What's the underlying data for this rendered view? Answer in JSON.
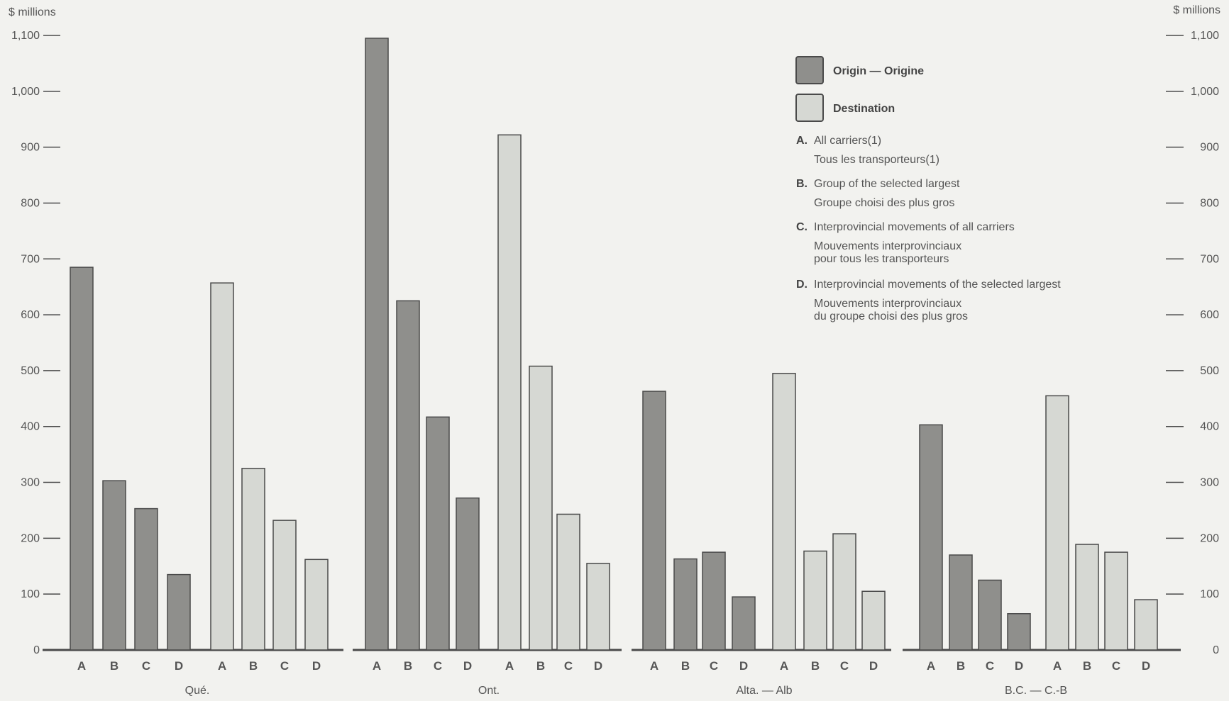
{
  "colors": {
    "origin": "#8f8f8c",
    "destination": "#d6d8d3",
    "bar_stroke": "#4a4a4a",
    "axis": "#4a4a4a",
    "background": "#f2f2ef"
  },
  "chart_data": {
    "type": "bar",
    "title": "",
    "y_unit_label": "$ millions",
    "ylim": [
      0,
      1100
    ],
    "y_ticks": [
      0,
      100,
      200,
      300,
      400,
      500,
      600,
      700,
      800,
      900,
      1000,
      1100
    ],
    "y_tick_labels": [
      "0",
      "100",
      "200",
      "300",
      "400",
      "500",
      "600",
      "700",
      "800",
      "900",
      "1,000",
      "1,100"
    ],
    "grid": false,
    "legend_position": "top-right",
    "categories": [
      "A",
      "B",
      "C",
      "D"
    ],
    "groups": [
      "Qué.",
      "Ont.",
      "Alta. — Alb",
      "B.C. — C.-B"
    ],
    "series": [
      {
        "name": "Origin — Origine",
        "values": {
          "Qué.": [
            685,
            303,
            253,
            135
          ],
          "Ont.": [
            1095,
            625,
            417,
            272
          ],
          "Alta. — Alb": [
            463,
            163,
            175,
            95
          ],
          "B.C. — C.-B": [
            403,
            170,
            125,
            65
          ]
        }
      },
      {
        "name": "Destination",
        "values": {
          "Qué.": [
            657,
            325,
            232,
            162
          ],
          "Ont.": [
            922,
            508,
            243,
            155
          ],
          "Alta. — Alb": [
            495,
            177,
            208,
            105
          ],
          "B.C. — C.-B": [
            455,
            189,
            175,
            90
          ]
        }
      }
    ],
    "legend_keys": [
      {
        "letter": "A.",
        "lines": [
          "All carriers(1)",
          "Tous les transporteurs(1)"
        ]
      },
      {
        "letter": "B.",
        "lines": [
          "Group of the selected largest",
          "Groupe choisi des plus gros"
        ]
      },
      {
        "letter": "C.",
        "lines": [
          "Interprovincial movements of all carriers",
          "Mouvements interprovinciaux",
          "pour tous les transporteurs"
        ]
      },
      {
        "letter": "D.",
        "lines": [
          "Interprovincial movements of the selected largest",
          "Mouvements interprovinciaux",
          "du groupe choisi des plus gros"
        ]
      }
    ]
  }
}
